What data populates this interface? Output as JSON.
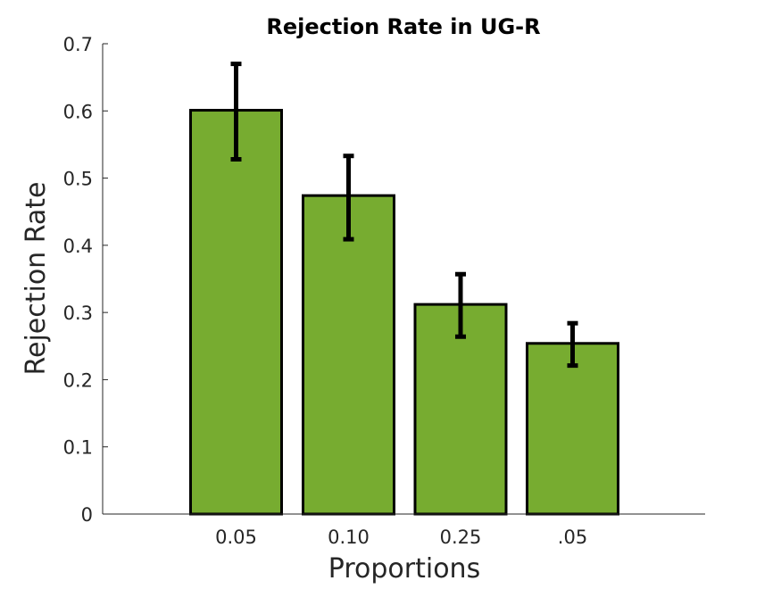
{
  "chart_data": {
    "type": "bar",
    "title": "Rejection Rate in UG-R",
    "xlabel": "Proportions",
    "ylabel": "Rejection Rate",
    "categories": [
      "0.05",
      "0.10",
      "0.25",
      ".05"
    ],
    "values": [
      0.601,
      0.474,
      0.312,
      0.254
    ],
    "error_low": [
      0.528,
      0.409,
      0.264,
      0.221
    ],
    "error_high": [
      0.67,
      0.533,
      0.357,
      0.284
    ],
    "ylim": [
      0,
      0.7
    ],
    "yticks": [
      "0",
      "0.1",
      "0.2",
      "0.3",
      "0.4",
      "0.5",
      "0.6",
      "0.7"
    ],
    "bar_color": "#77ac30",
    "error_color": "#000000",
    "grid": false,
    "legend": "none"
  }
}
